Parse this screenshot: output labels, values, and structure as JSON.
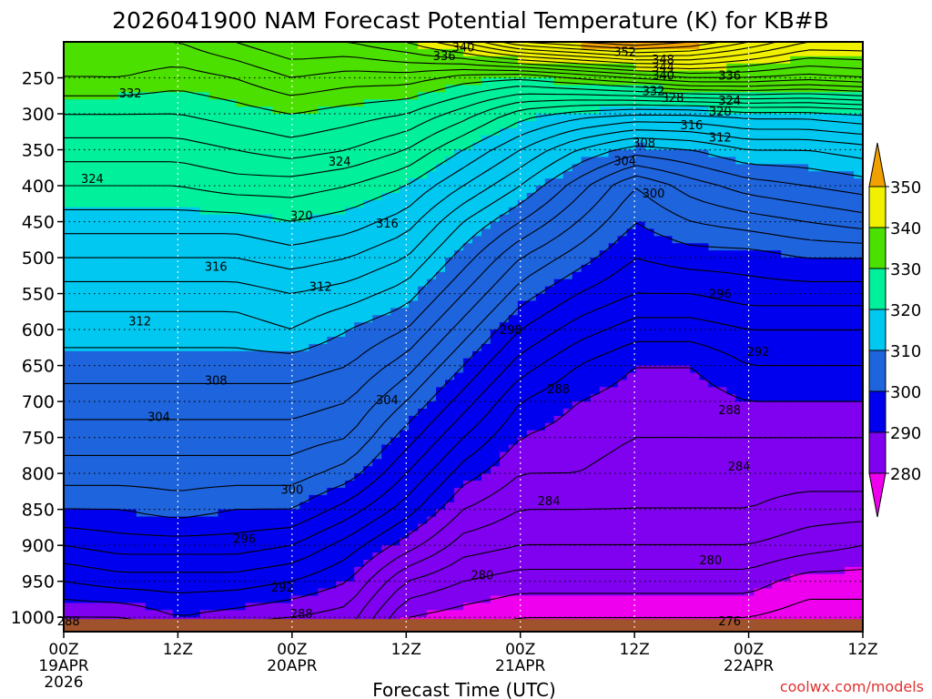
{
  "chart_data": {
    "type": "heatmap",
    "title": "2026041900 NAM Forecast Potential Temperature (K) for KB#B",
    "xlabel": "Forecast Time (UTC)",
    "ylabel": "",
    "credit": "coolwx.com/models",
    "x_ticks": [
      {
        "label": "00Z",
        "sub": "19APR",
        "sub2": "2026",
        "hour": 0
      },
      {
        "label": "12Z",
        "sub": "",
        "sub2": "",
        "hour": 12
      },
      {
        "label": "00Z",
        "sub": "20APR",
        "sub2": "",
        "hour": 24
      },
      {
        "label": "12Z",
        "sub": "",
        "sub2": "",
        "hour": 36
      },
      {
        "label": "00Z",
        "sub": "21APR",
        "sub2": "",
        "hour": 48
      },
      {
        "label": "12Z",
        "sub": "",
        "sub2": "",
        "hour": 60
      },
      {
        "label": "00Z",
        "sub": "22APR",
        "sub2": "",
        "hour": 72
      },
      {
        "label": "12Z",
        "sub": "",
        "sub2": "",
        "hour": 84
      }
    ],
    "xlim": [
      0,
      84
    ],
    "y_ticks": [
      250,
      300,
      350,
      400,
      450,
      500,
      550,
      600,
      650,
      700,
      750,
      800,
      850,
      900,
      950,
      1000
    ],
    "ylim": [
      1020,
      200
    ],
    "colorbar": {
      "levels": [
        280,
        290,
        300,
        310,
        320,
        330,
        340,
        350
      ],
      "labels": [
        "280",
        "290",
        "300",
        "310",
        "320",
        "330",
        "340",
        "350"
      ],
      "colors": [
        "#ee00ee",
        "#8000f0",
        "#0000ee",
        "#1e64dc",
        "#00c8f0",
        "#00f09c",
        "#4ce000",
        "#f0f000",
        "#f0a000"
      ]
    },
    "surface_color": "#a0522d",
    "contour_interval": 2,
    "profiles_hours": [
      0,
      6,
      12,
      18,
      24,
      30,
      36,
      42,
      48,
      54,
      60,
      66,
      72,
      78,
      84
    ],
    "profile_levels_hpa": [
      1020,
      1000,
      950,
      900,
      850,
      800,
      750,
      700,
      650,
      600,
      550,
      500,
      450,
      400,
      350,
      300,
      250,
      200
    ],
    "theta": [
      [
        286,
        288,
        292,
        296,
        300,
        303,
        305,
        307,
        309,
        311,
        313,
        316,
        319,
        322,
        325,
        328,
        332,
        333
      ],
      [
        286,
        288,
        293,
        297,
        300,
        303,
        305,
        307,
        309,
        311,
        313,
        316,
        319,
        322,
        325,
        328,
        332,
        334
      ],
      [
        286,
        290,
        293,
        297,
        301,
        303,
        305,
        307,
        309,
        311,
        313,
        316,
        319,
        322,
        325,
        328,
        331,
        334
      ],
      [
        286,
        289,
        293,
        297,
        300,
        303,
        305,
        307,
        309,
        311,
        313,
        316,
        319,
        323,
        326,
        329,
        332,
        336
      ],
      [
        286,
        288,
        292,
        296,
        300,
        303,
        305,
        307,
        309,
        312,
        314,
        317,
        320,
        323,
        327,
        330,
        334,
        338
      ],
      [
        286,
        287,
        290,
        293,
        297,
        301,
        304,
        306,
        308,
        310,
        313,
        316,
        319,
        322,
        326,
        329,
        333,
        338
      ],
      [
        279,
        280,
        284,
        289,
        293,
        296,
        299,
        302,
        305,
        308,
        311,
        314,
        317,
        320,
        324,
        328,
        333,
        340
      ],
      [
        278,
        279,
        282,
        285,
        288,
        291,
        294,
        297,
        300,
        303,
        306,
        309,
        312,
        316,
        320,
        325,
        331,
        344
      ],
      [
        277,
        278,
        281,
        284,
        286,
        288,
        290,
        292,
        295,
        298,
        301,
        304,
        308,
        312,
        316,
        321,
        330,
        350
      ],
      [
        277,
        278,
        281,
        284,
        286,
        288,
        289,
        290,
        292,
        295,
        298,
        301,
        304,
        307,
        312,
        319,
        332,
        352
      ],
      [
        277,
        278,
        281,
        284,
        286,
        287,
        288,
        289,
        290,
        293,
        296,
        298,
        300,
        302,
        309,
        318,
        334,
        354
      ],
      [
        277,
        278,
        281,
        284,
        286,
        287,
        288,
        289,
        290,
        293,
        296,
        299,
        302,
        305,
        310,
        318,
        336,
        352
      ],
      [
        277,
        278,
        281,
        284,
        286,
        287,
        288,
        290,
        292,
        294,
        297,
        299,
        303,
        307,
        312,
        319,
        336,
        348
      ],
      [
        276,
        277,
        279,
        283,
        285,
        287,
        288,
        290,
        292,
        294,
        297,
        300,
        304,
        308,
        312,
        319,
        335,
        344
      ],
      [
        276,
        277,
        279,
        282,
        285,
        287,
        288,
        290,
        292,
        294,
        297,
        300,
        305,
        309,
        313,
        320,
        336,
        344
      ]
    ],
    "contour_labels": [
      {
        "text": "288",
        "hour": 0.5,
        "p": 1005
      },
      {
        "text": "296",
        "hour": 19,
        "p": 890
      },
      {
        "text": "292",
        "hour": 23,
        "p": 958
      },
      {
        "text": "288",
        "hour": 25,
        "p": 995
      },
      {
        "text": "300",
        "hour": 24,
        "p": 822
      },
      {
        "text": "304",
        "hour": 10,
        "p": 721
      },
      {
        "text": "308",
        "hour": 16,
        "p": 670
      },
      {
        "text": "312",
        "hour": 8,
        "p": 588
      },
      {
        "text": "316",
        "hour": 16,
        "p": 512
      },
      {
        "text": "312",
        "hour": 27,
        "p": 540
      },
      {
        "text": "304",
        "hour": 34,
        "p": 697
      },
      {
        "text": "320",
        "hour": 25,
        "p": 441
      },
      {
        "text": "316",
        "hour": 34,
        "p": 452
      },
      {
        "text": "324",
        "hour": 3,
        "p": 390
      },
      {
        "text": "324",
        "hour": 29,
        "p": 366
      },
      {
        "text": "332",
        "hour": 7,
        "p": 271
      },
      {
        "text": "340",
        "hour": 42,
        "p": 207
      },
      {
        "text": "336",
        "hour": 40,
        "p": 219
      },
      {
        "text": "298",
        "hour": 47,
        "p": 600
      },
      {
        "text": "288",
        "hour": 52,
        "p": 682
      },
      {
        "text": "284",
        "hour": 51,
        "p": 838
      },
      {
        "text": "280",
        "hour": 44,
        "p": 941
      },
      {
        "text": "300",
        "hour": 62,
        "p": 410
      },
      {
        "text": "304",
        "hour": 59,
        "p": 365
      },
      {
        "text": "308",
        "hour": 61,
        "p": 340
      },
      {
        "text": "312",
        "hour": 69,
        "p": 332
      },
      {
        "text": "316",
        "hour": 66,
        "p": 315
      },
      {
        "text": "320",
        "hour": 69,
        "p": 296
      },
      {
        "text": "324",
        "hour": 70,
        "p": 281
      },
      {
        "text": "328",
        "hour": 64,
        "p": 277
      },
      {
        "text": "332",
        "hour": 62,
        "p": 268
      },
      {
        "text": "336",
        "hour": 70,
        "p": 246
      },
      {
        "text": "340",
        "hour": 63,
        "p": 246
      },
      {
        "text": "344",
        "hour": 63,
        "p": 235
      },
      {
        "text": "348",
        "hour": 63,
        "p": 224
      },
      {
        "text": "352",
        "hour": 59,
        "p": 213
      },
      {
        "text": "296",
        "hour": 69,
        "p": 550
      },
      {
        "text": "292",
        "hour": 73,
        "p": 630
      },
      {
        "text": "288",
        "hour": 70,
        "p": 711
      },
      {
        "text": "284",
        "hour": 71,
        "p": 790
      },
      {
        "text": "280",
        "hour": 68,
        "p": 920
      },
      {
        "text": "276",
        "hour": 70,
        "p": 1005
      }
    ]
  }
}
